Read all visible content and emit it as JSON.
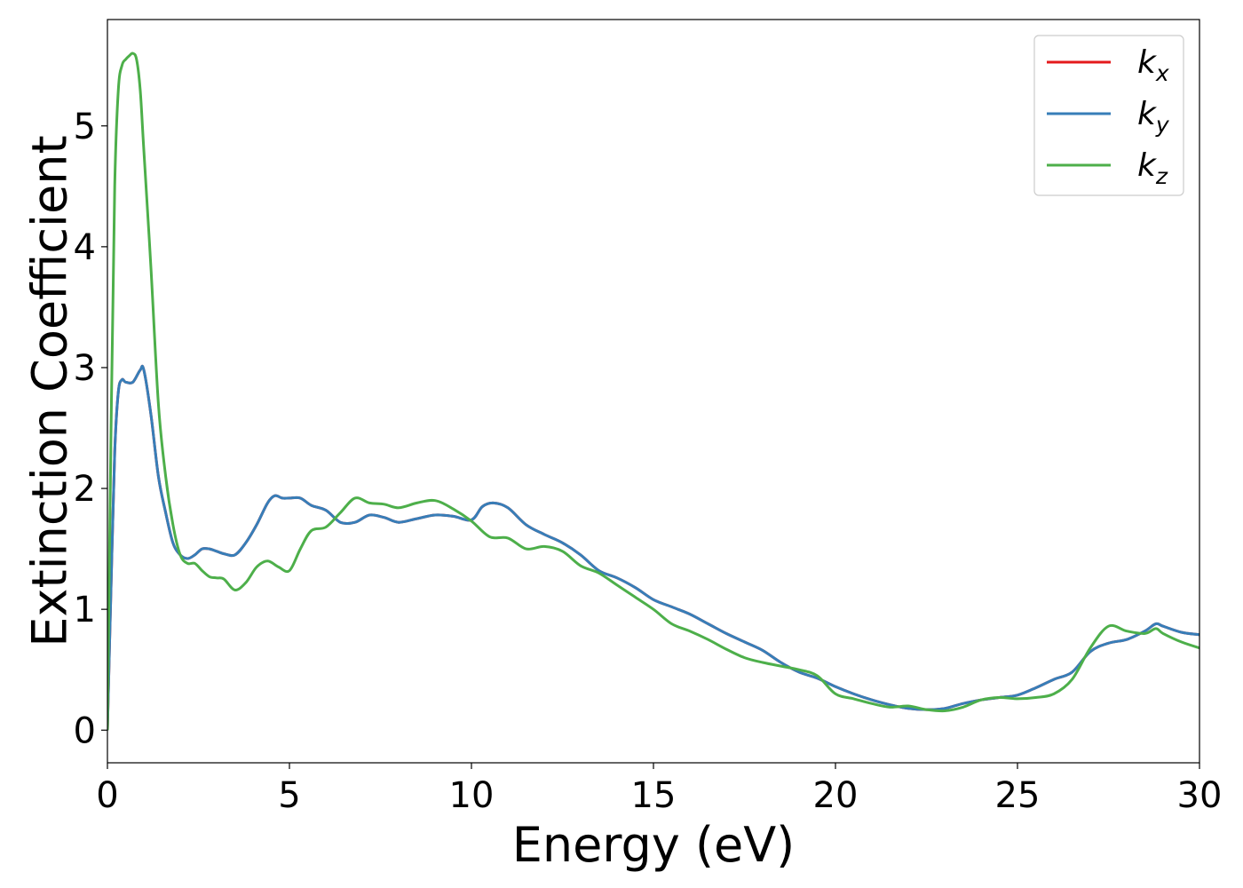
{
  "chart_data": {
    "type": "line",
    "title": "",
    "xlabel": "Energy (eV)",
    "ylabel": "Extinction Coefficient",
    "xlim": [
      0,
      30
    ],
    "ylim": [
      -0.27,
      5.88
    ],
    "xticks": [
      0,
      5,
      10,
      15,
      20,
      25,
      30
    ],
    "yticks": [
      0,
      1,
      2,
      3,
      4,
      5
    ],
    "grid": false,
    "legend_position": "top-right",
    "series": [
      {
        "name": "k_x",
        "label_base": "k",
        "label_sub": "x",
        "color": "#e41a1c",
        "x": [
          0,
          0.1,
          0.2,
          0.3,
          0.4,
          0.5,
          0.7,
          0.9,
          1.0,
          1.2,
          1.4,
          1.6,
          1.8,
          2.0,
          2.2,
          2.4,
          2.6,
          2.8,
          3.0,
          3.2,
          3.5,
          3.8,
          4.1,
          4.4,
          4.6,
          4.8,
          5.0,
          5.3,
          5.6,
          6.0,
          6.4,
          6.8,
          7.2,
          7.6,
          8.0,
          8.5,
          9.0,
          9.5,
          10.0,
          10.3,
          10.6,
          11.0,
          11.5,
          12.0,
          12.5,
          13.0,
          13.5,
          14.0,
          14.5,
          15.0,
          15.5,
          16.0,
          16.5,
          17.0,
          17.5,
          18.0,
          18.5,
          19.0,
          19.5,
          20.0,
          20.5,
          21.0,
          21.5,
          22.0,
          22.5,
          23.0,
          23.5,
          24.0,
          24.5,
          25.0,
          25.5,
          26.0,
          26.5,
          27.0,
          27.5,
          28.0,
          28.5,
          28.8,
          29.0,
          29.5,
          30.0
        ],
        "y": [
          0,
          1.2,
          2.3,
          2.8,
          2.9,
          2.88,
          2.88,
          2.98,
          2.98,
          2.6,
          2.1,
          1.8,
          1.55,
          1.45,
          1.42,
          1.45,
          1.5,
          1.5,
          1.48,
          1.46,
          1.45,
          1.55,
          1.7,
          1.88,
          1.94,
          1.92,
          1.92,
          1.92,
          1.86,
          1.82,
          1.72,
          1.72,
          1.78,
          1.76,
          1.72,
          1.75,
          1.78,
          1.77,
          1.74,
          1.85,
          1.88,
          1.84,
          1.7,
          1.62,
          1.55,
          1.45,
          1.32,
          1.26,
          1.18,
          1.08,
          1.02,
          0.96,
          0.88,
          0.8,
          0.73,
          0.66,
          0.56,
          0.48,
          0.43,
          0.36,
          0.3,
          0.25,
          0.21,
          0.18,
          0.17,
          0.18,
          0.22,
          0.25,
          0.27,
          0.29,
          0.35,
          0.42,
          0.48,
          0.65,
          0.72,
          0.75,
          0.82,
          0.88,
          0.86,
          0.81,
          0.79
        ]
      },
      {
        "name": "k_y",
        "label_base": "k",
        "label_sub": "y",
        "color": "#377eb8",
        "x": [
          0,
          0.1,
          0.2,
          0.3,
          0.4,
          0.5,
          0.7,
          0.9,
          1.0,
          1.2,
          1.4,
          1.6,
          1.8,
          2.0,
          2.2,
          2.4,
          2.6,
          2.8,
          3.0,
          3.2,
          3.5,
          3.8,
          4.1,
          4.4,
          4.6,
          4.8,
          5.0,
          5.3,
          5.6,
          6.0,
          6.4,
          6.8,
          7.2,
          7.6,
          8.0,
          8.5,
          9.0,
          9.5,
          10.0,
          10.3,
          10.6,
          11.0,
          11.5,
          12.0,
          12.5,
          13.0,
          13.5,
          14.0,
          14.5,
          15.0,
          15.5,
          16.0,
          16.5,
          17.0,
          17.5,
          18.0,
          18.5,
          19.0,
          19.5,
          20.0,
          20.5,
          21.0,
          21.5,
          22.0,
          22.5,
          23.0,
          23.5,
          24.0,
          24.5,
          25.0,
          25.5,
          26.0,
          26.5,
          27.0,
          27.5,
          28.0,
          28.5,
          28.8,
          29.0,
          29.5,
          30.0
        ],
        "y": [
          0,
          1.2,
          2.3,
          2.8,
          2.9,
          2.88,
          2.88,
          2.98,
          2.98,
          2.6,
          2.1,
          1.8,
          1.55,
          1.45,
          1.42,
          1.45,
          1.5,
          1.5,
          1.48,
          1.46,
          1.45,
          1.55,
          1.7,
          1.88,
          1.94,
          1.92,
          1.92,
          1.92,
          1.86,
          1.82,
          1.72,
          1.72,
          1.78,
          1.76,
          1.72,
          1.75,
          1.78,
          1.77,
          1.74,
          1.85,
          1.88,
          1.84,
          1.7,
          1.62,
          1.55,
          1.45,
          1.32,
          1.26,
          1.18,
          1.08,
          1.02,
          0.96,
          0.88,
          0.8,
          0.73,
          0.66,
          0.56,
          0.48,
          0.43,
          0.36,
          0.3,
          0.25,
          0.21,
          0.18,
          0.17,
          0.18,
          0.22,
          0.25,
          0.27,
          0.29,
          0.35,
          0.42,
          0.48,
          0.65,
          0.72,
          0.75,
          0.82,
          0.88,
          0.86,
          0.81,
          0.79
        ]
      },
      {
        "name": "k_z",
        "label_base": "k",
        "label_sub": "z",
        "color": "#4daf4a",
        "x": [
          0,
          0.1,
          0.2,
          0.3,
          0.4,
          0.5,
          0.6,
          0.7,
          0.8,
          0.9,
          1.0,
          1.2,
          1.4,
          1.6,
          1.8,
          2.0,
          2.2,
          2.4,
          2.6,
          2.8,
          3.0,
          3.2,
          3.5,
          3.8,
          4.1,
          4.4,
          4.7,
          5.0,
          5.3,
          5.6,
          6.0,
          6.4,
          6.8,
          7.2,
          7.6,
          8.0,
          8.5,
          9.0,
          9.5,
          10.0,
          10.5,
          11.0,
          11.5,
          12.0,
          12.5,
          13.0,
          13.5,
          14.0,
          14.5,
          15.0,
          15.5,
          16.0,
          16.5,
          17.0,
          17.5,
          18.0,
          18.5,
          19.0,
          19.5,
          20.0,
          20.5,
          21.0,
          21.5,
          22.0,
          22.5,
          23.0,
          23.5,
          24.0,
          24.5,
          25.0,
          25.5,
          26.0,
          26.5,
          27.0,
          27.5,
          28.0,
          28.5,
          28.8,
          29.0,
          29.5,
          30.0
        ],
        "y": [
          0,
          2.5,
          4.5,
          5.3,
          5.5,
          5.55,
          5.58,
          5.6,
          5.55,
          5.3,
          4.8,
          3.8,
          2.7,
          2.1,
          1.7,
          1.45,
          1.38,
          1.38,
          1.32,
          1.27,
          1.26,
          1.25,
          1.16,
          1.22,
          1.35,
          1.4,
          1.35,
          1.32,
          1.5,
          1.65,
          1.68,
          1.8,
          1.92,
          1.88,
          1.87,
          1.84,
          1.88,
          1.9,
          1.83,
          1.73,
          1.6,
          1.59,
          1.5,
          1.52,
          1.48,
          1.36,
          1.3,
          1.2,
          1.1,
          1.0,
          0.88,
          0.82,
          0.75,
          0.67,
          0.6,
          0.56,
          0.53,
          0.5,
          0.45,
          0.3,
          0.26,
          0.22,
          0.19,
          0.2,
          0.17,
          0.16,
          0.19,
          0.25,
          0.27,
          0.26,
          0.27,
          0.3,
          0.42,
          0.68,
          0.86,
          0.82,
          0.8,
          0.84,
          0.8,
          0.73,
          0.68
        ]
      }
    ]
  }
}
